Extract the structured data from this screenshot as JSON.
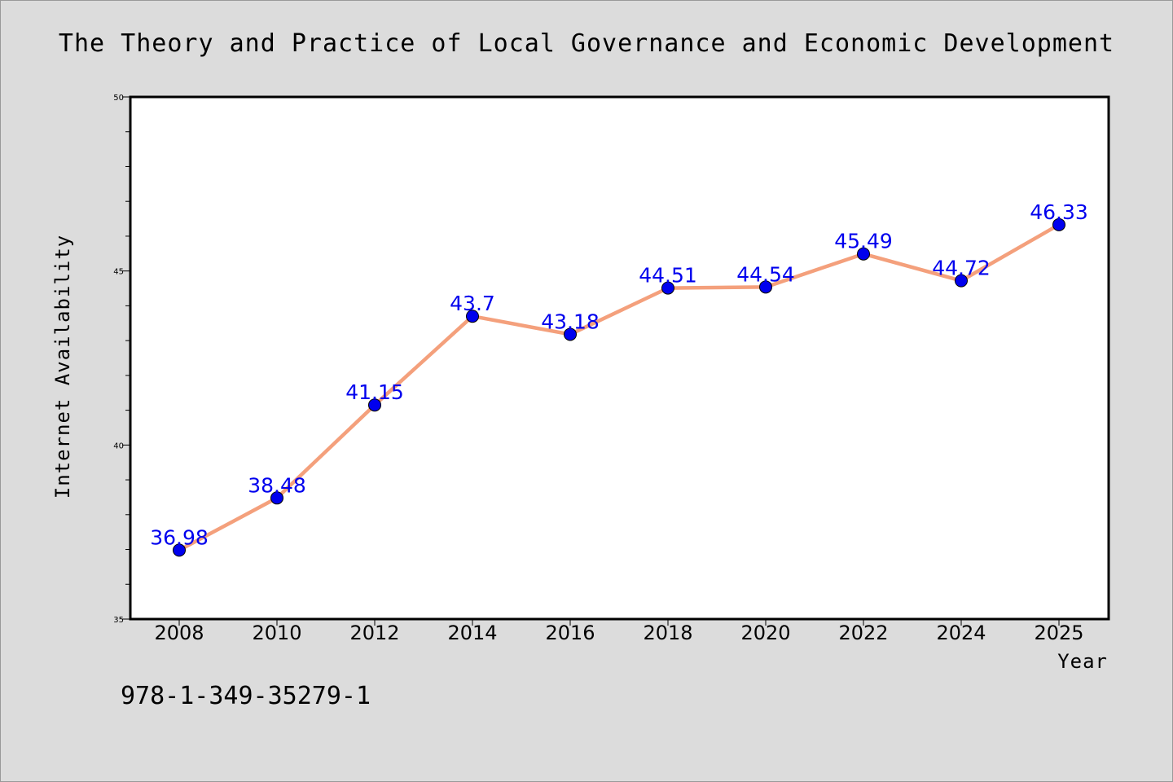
{
  "chart_data": {
    "type": "line",
    "title": "The Theory and Practice of Local Governance and Economic Development",
    "xlabel": "Year",
    "ylabel": "Internet Availability",
    "x": [
      "2008",
      "2010",
      "2012",
      "2014",
      "2016",
      "2018",
      "2020",
      "2022",
      "2024",
      "2025"
    ],
    "series": [
      {
        "values": [
          36.98,
          38.48,
          41.15,
          43.7,
          43.18,
          44.51,
          44.54,
          45.49,
          44.72,
          46.33
        ],
        "data_labels": [
          "36.98",
          "38.48",
          "41.15",
          "43.7",
          "43.18",
          "44.51",
          "44.54",
          "45.49",
          "44.72",
          "46.33"
        ]
      }
    ],
    "ylim": [
      35,
      50
    ],
    "yticks": [
      "35",
      "40",
      "45",
      "50"
    ],
    "grid": false,
    "colors": {
      "line": "#f4a07c",
      "marker": "#0000ee",
      "label": "#0000ee",
      "background": "#dcdcdc",
      "plot_area": "#ffffff"
    }
  },
  "footer": {
    "isbn": "978-1-349-35279-1"
  }
}
